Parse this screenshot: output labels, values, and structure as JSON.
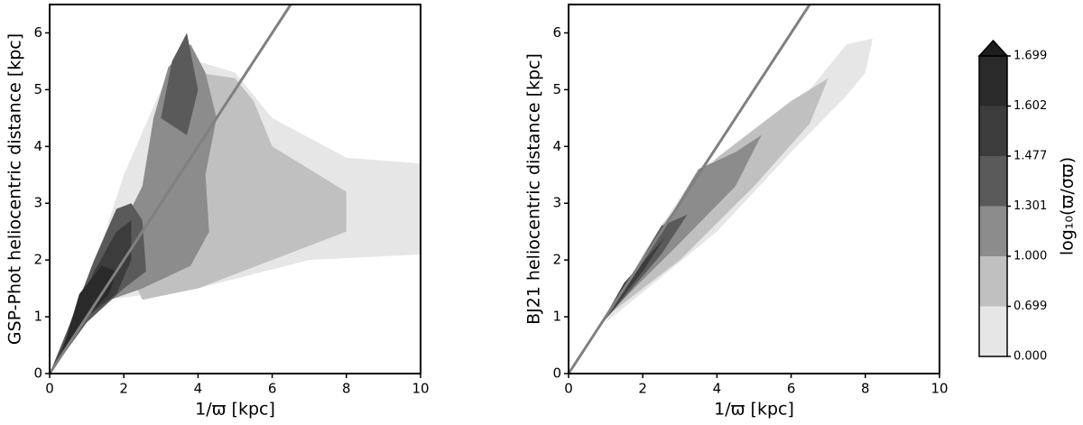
{
  "chart_data": [
    {
      "type": "density",
      "xlabel": "1/ϖ [kpc]",
      "ylabel": "GSP-Phot heliocentric distance [kpc]",
      "xlim": [
        0,
        10
      ],
      "ylim": [
        0,
        6.5
      ],
      "xticks": [
        0,
        2,
        4,
        6,
        8,
        10
      ],
      "yticks": [
        0,
        1,
        2,
        3,
        4,
        5,
        6
      ],
      "regions": [
        {
          "color": "#e6e6e6",
          "x": [
            1.5,
            4,
            7,
            10,
            10,
            8,
            6,
            5,
            3.5,
            3,
            2,
            1
          ],
          "y": [
            1.3,
            1.5,
            2,
            2.1,
            3.7,
            3.8,
            4.5,
            5.3,
            5.6,
            5,
            3.5,
            1.5
          ]
        },
        {
          "color": "#c0c0c0",
          "x": [
            2.5,
            4,
            6,
            8,
            8,
            6,
            5.5,
            5,
            4,
            3,
            2
          ],
          "y": [
            1.3,
            1.5,
            2,
            2.5,
            3.2,
            4,
            4.8,
            5.2,
            5.3,
            4,
            2
          ]
        },
        {
          "color": "#8c8c8c",
          "x": [
            0,
            1.2,
            2.5,
            3.8,
            4.3,
            4.2,
            4.5,
            4.2,
            3.8,
            3.2,
            2.8,
            2.5,
            1.5,
            0.2
          ],
          "y": [
            0,
            1.2,
            1.5,
            1.9,
            2.5,
            3.5,
            4.5,
            5.3,
            5.8,
            5.4,
            4.5,
            3.3,
            2,
            0.2
          ]
        },
        {
          "color": "#5a5a5a",
          "x": [
            3,
            3.7,
            4,
            3.7,
            3.3
          ],
          "y": [
            4.5,
            4.2,
            5,
            6,
            5.5
          ]
        },
        {
          "color": "#5a5a5a",
          "x": [
            0,
            1,
            2,
            2.6,
            2.5,
            2.2,
            1.8,
            1.2,
            0.5
          ],
          "y": [
            0,
            0.9,
            1.5,
            1.8,
            2.7,
            3,
            2.9,
            2,
            0.8
          ]
        },
        {
          "color": "#3c3c3c",
          "x": [
            0,
            1,
            1.8,
            2.2,
            2.2,
            1.8,
            1.2,
            0.5
          ],
          "y": [
            0,
            1,
            1.4,
            2,
            2.7,
            2.5,
            1.8,
            0.7
          ]
        },
        {
          "color": "#2a2a2a",
          "x": [
            0.3,
            1,
            1.6,
            1.8,
            1.4,
            0.8
          ],
          "y": [
            0.3,
            1,
            1.4,
            1.8,
            1.9,
            1.4
          ]
        }
      ],
      "lines": [
        {
          "color": "#808080",
          "x": [
            0,
            6.5
          ],
          "y": [
            0,
            6.5
          ]
        }
      ]
    },
    {
      "type": "density",
      "xlabel": "1/ϖ [kpc]",
      "ylabel": "BJ21 heliocentric distance [kpc]",
      "xlim": [
        0,
        10
      ],
      "ylim": [
        0,
        6.5
      ],
      "xticks": [
        0,
        2,
        4,
        6,
        8,
        10
      ],
      "yticks": [
        0,
        1,
        2,
        3,
        4,
        5,
        6
      ],
      "regions": [
        {
          "color": "#e6e6e6",
          "x": [
            1,
            4,
            6,
            7.5,
            8,
            8.2,
            7.5,
            6.5,
            5,
            3.5,
            2
          ],
          "y": [
            0.9,
            2.5,
            3.9,
            4.9,
            5.3,
            5.9,
            5.8,
            5,
            4.2,
            3.6,
            2.1
          ]
        },
        {
          "color": "#c0c0c0",
          "x": [
            1,
            3,
            5,
            6.5,
            7,
            6,
            5,
            4,
            2.5
          ],
          "y": [
            1,
            2,
            3.3,
            4.4,
            5.2,
            4.8,
            4.3,
            3.8,
            2.6
          ]
        },
        {
          "color": "#8c8c8c",
          "x": [
            1,
            3,
            4.5,
            5.2,
            4.5,
            3.5,
            2.5
          ],
          "y": [
            1,
            2.3,
            3.3,
            4.2,
            3.9,
            3.6,
            2.5
          ]
        },
        {
          "color": "#5a5a5a",
          "x": [
            0.8,
            2.5,
            3.2,
            2.5,
            1.5
          ],
          "y": [
            0.8,
            2.1,
            2.8,
            2.6,
            1.5
          ]
        },
        {
          "color": "#3c3c3c",
          "x": [
            0.8,
            2,
            2.6,
            1.5
          ],
          "y": [
            0.8,
            1.8,
            2.4,
            1.6
          ]
        }
      ],
      "lines": [
        {
          "color": "#808080",
          "x": [
            0,
            6.5
          ],
          "y": [
            0,
            6.5
          ]
        }
      ]
    },
    {
      "type": "colorbar",
      "label": "log₁₀(ϖ/σϖ)",
      "ticks": [
        {
          "value": 0,
          "label": "0.000"
        },
        0.699,
        {
          "value": 1,
          "label": "1.000"
        },
        1.301,
        1.477,
        1.602,
        1.699
      ],
      "colors": [
        "#e6e6e6",
        "#c0c0c0",
        "#8c8c8c",
        "#5a5a5a",
        "#3c3c3c",
        "#2a2a2a"
      ],
      "extend_color": "#1e1e1e"
    }
  ]
}
